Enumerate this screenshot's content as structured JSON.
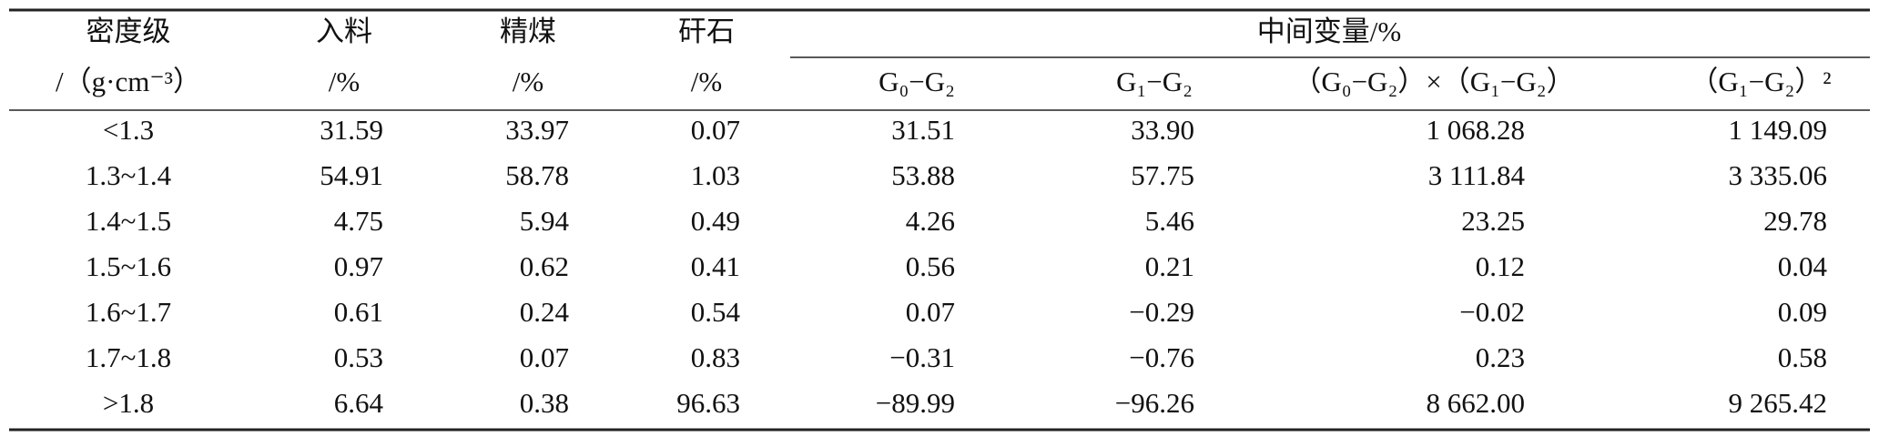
{
  "table": {
    "header": {
      "row1": [
        "密度级",
        "入料",
        "精煤",
        "矸石",
        "中间变量/%"
      ],
      "row2": [
        "/（g·cm⁻³）",
        "/%",
        "/%",
        "/%",
        "G₀−G₂",
        "G₁−G₂",
        "（G₀−G₂）×（G₁−G₂）",
        "（G₁−G₂）²"
      ]
    },
    "rows": [
      [
        "<1.3",
        "31.59",
        "33.97",
        "0.07",
        "31.51",
        "33.90",
        "1 068.28",
        "1 149.09"
      ],
      [
        "1.3~1.4",
        "54.91",
        "58.78",
        "1.03",
        "53.88",
        "57.75",
        "3 111.84",
        "3 335.06"
      ],
      [
        "1.4~1.5",
        "4.75",
        "5.94",
        "0.49",
        "4.26",
        "5.46",
        "23.25",
        "29.78"
      ],
      [
        "1.5~1.6",
        "0.97",
        "0.62",
        "0.41",
        "0.56",
        "0.21",
        "0.12",
        "0.04"
      ],
      [
        "1.6~1.7",
        "0.61",
        "0.24",
        "0.54",
        "0.07",
        "−0.29",
        "−0.02",
        "0.09"
      ],
      [
        "1.7~1.8",
        "0.53",
        "0.07",
        "0.83",
        "−0.31",
        "−0.76",
        "0.23",
        "0.58"
      ],
      [
        ">1.8",
        "6.64",
        "0.38",
        "96.63",
        "−89.99",
        "−96.26",
        "8 662.00",
        "9 265.42"
      ]
    ]
  }
}
